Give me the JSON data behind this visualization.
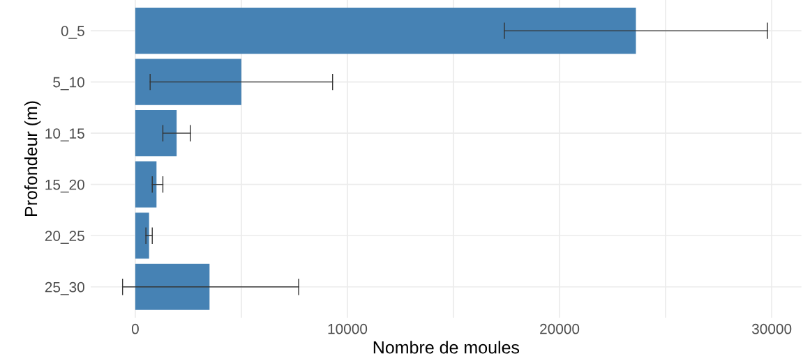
{
  "chart_data": {
    "type": "bar",
    "orientation": "horizontal",
    "xlabel": "Nombre de moules",
    "ylabel": "Profondeur (m)",
    "categories": [
      "0_5",
      "5_10",
      "10_15",
      "15_20",
      "20_25",
      "25_30"
    ],
    "values": [
      23600,
      5000,
      1950,
      1000,
      650,
      3500
    ],
    "errors": [
      [
        17400,
        29800
      ],
      [
        700,
        9300
      ],
      [
        1300,
        2600
      ],
      [
        800,
        1300
      ],
      [
        500,
        800
      ],
      [
        -600,
        7700
      ]
    ],
    "color": "#4682b4",
    "xlim": [
      -2100,
      31400
    ],
    "xticks": [
      0,
      {
        "value": 5000,
        "label": null
      },
      10000,
      {
        "value": 15000,
        "label": null
      },
      20000,
      {
        "value": 25000,
        "label": null
      },
      30000
    ],
    "grid": true
  }
}
